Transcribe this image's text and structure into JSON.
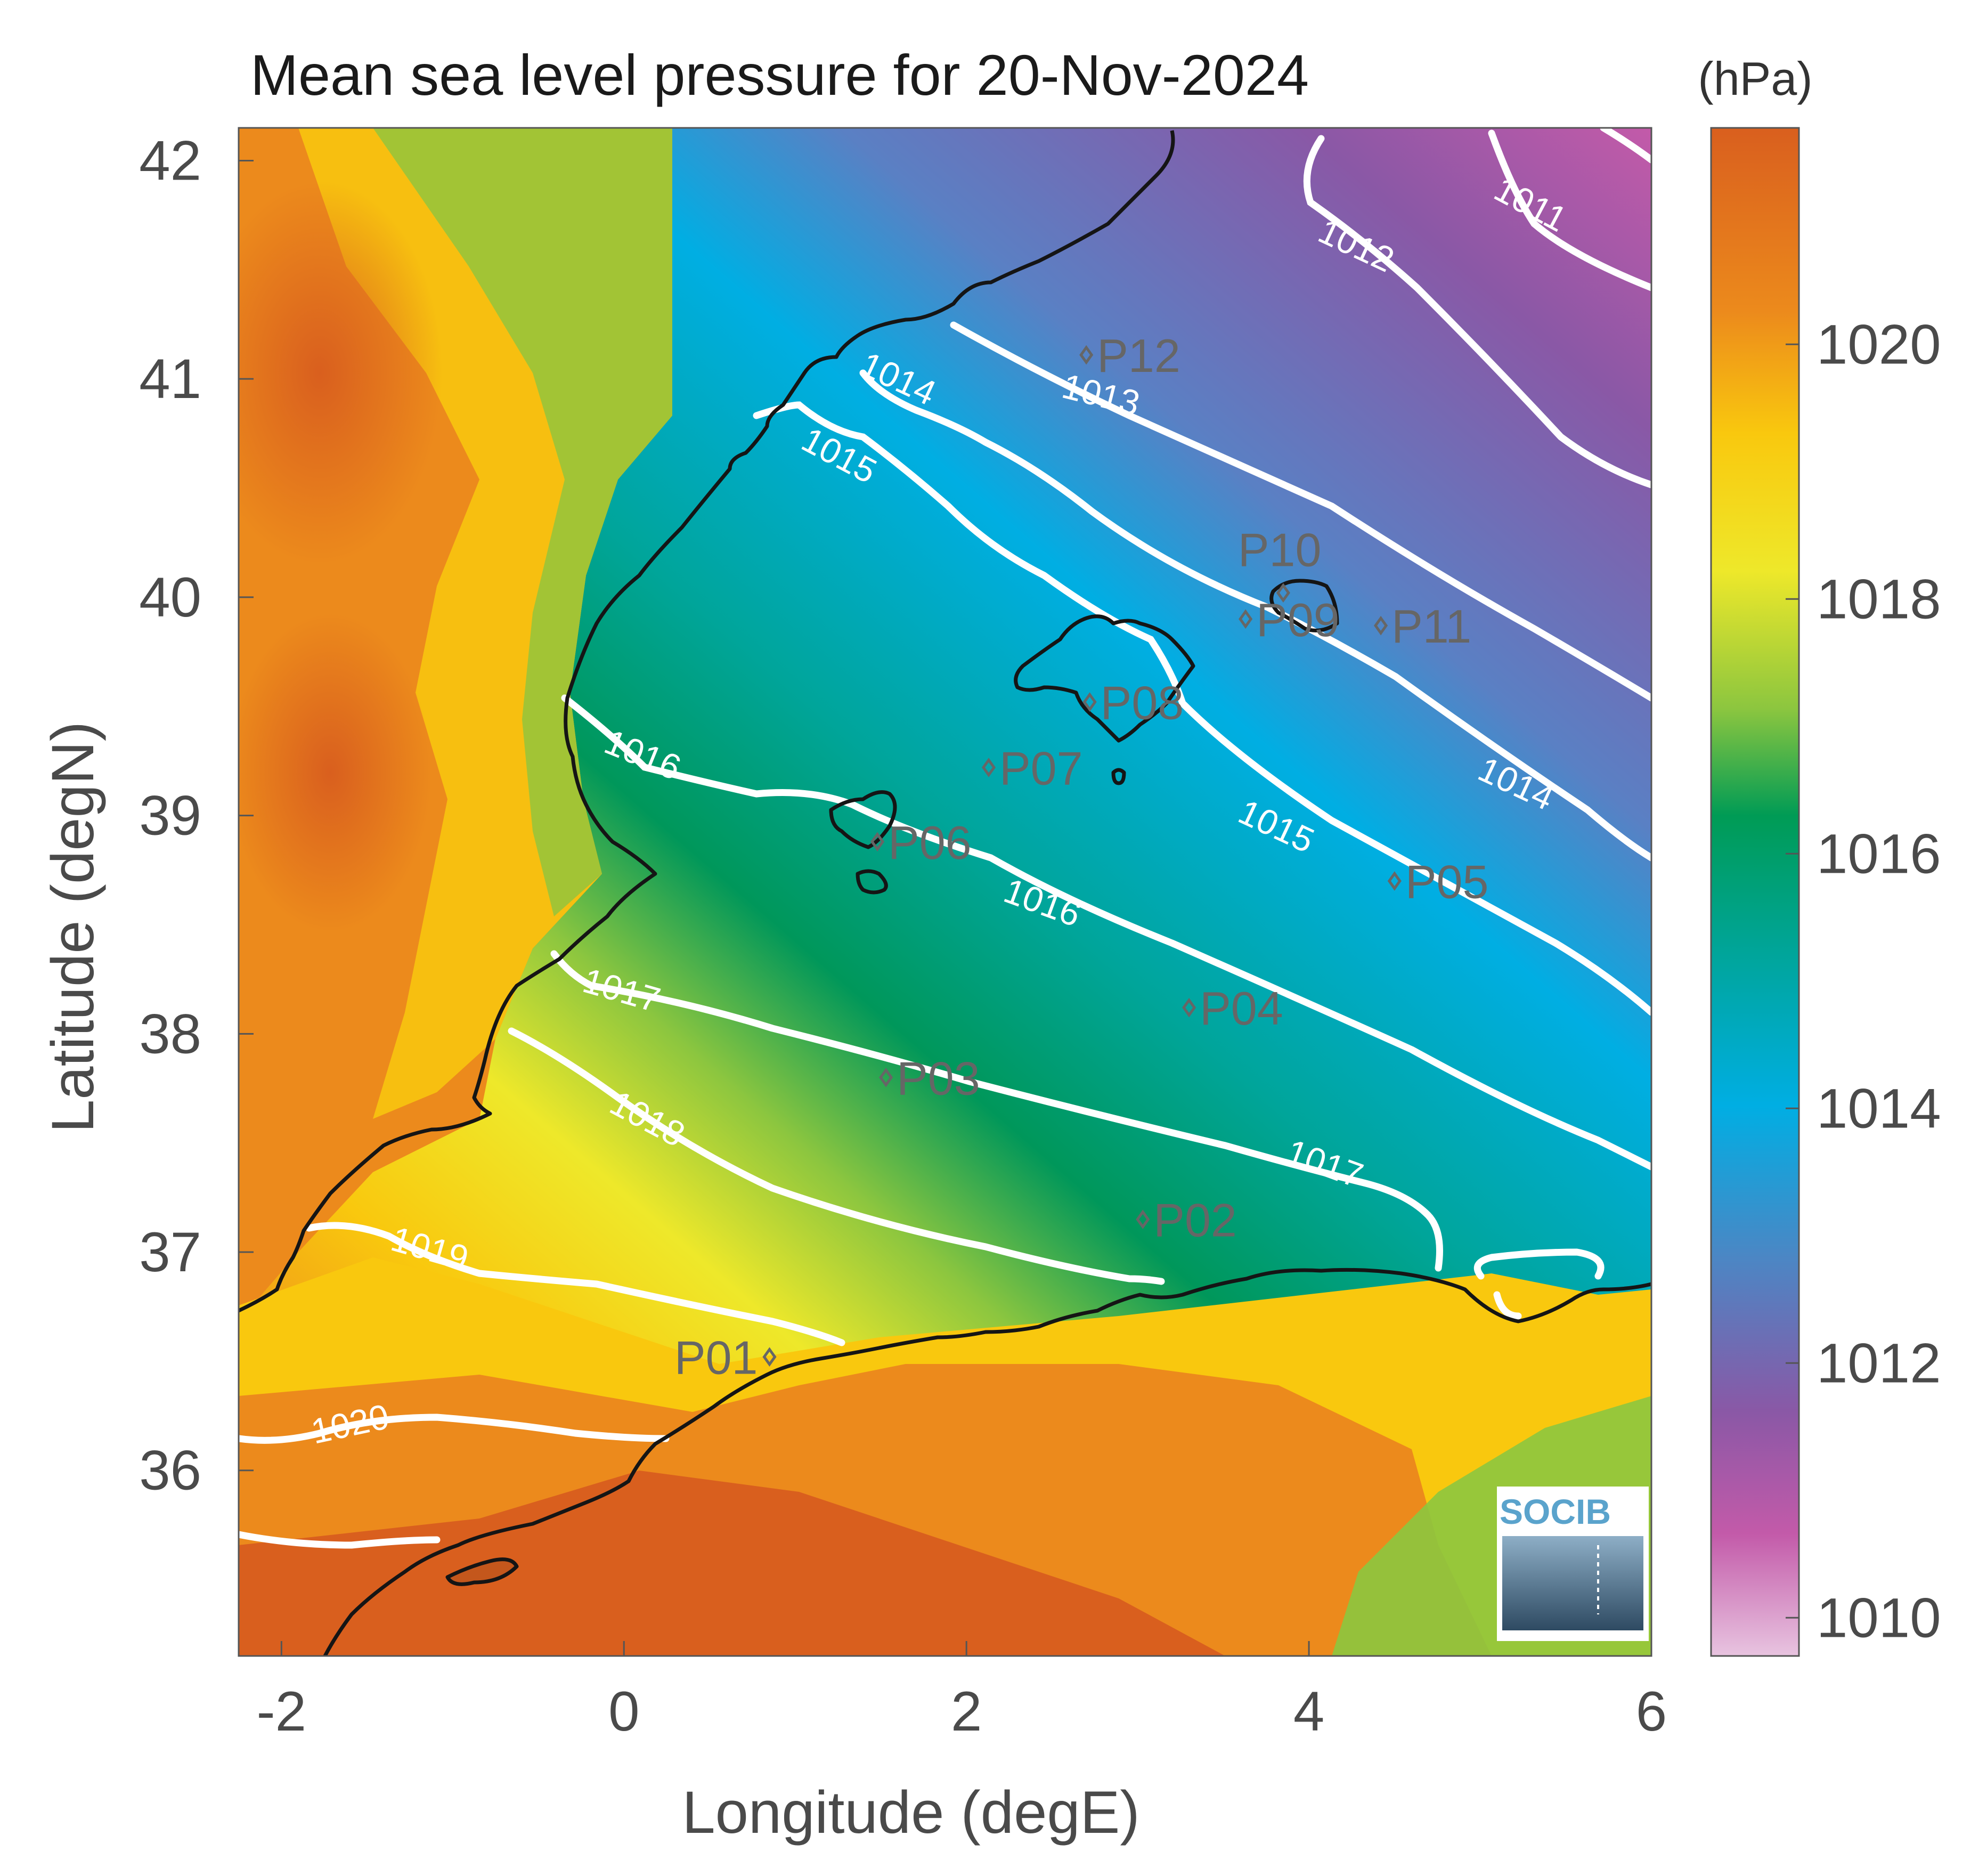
{
  "title": "Mean sea level pressure for 20-Nov-2024",
  "unit_label": "(hPa)",
  "logo_text": "SOCIB",
  "colors": {
    "coast": "#151515",
    "contour": "#ffffff",
    "point_marker": "#666666",
    "palette_high": "#d95f1e",
    "palette_mid": "#009b55",
    "palette_low": "#e8b8d8"
  },
  "chart_data": {
    "type": "heatmap",
    "title": "Mean sea level pressure for 20-Nov-2024",
    "xlabel": "Longitude (degE)",
    "ylabel": "Latitude (degN)",
    "xlim": [
      -2.25,
      6.0
    ],
    "ylim": [
      35.15,
      42.15
    ],
    "x_ticks": [
      "-2",
      "0",
      "2",
      "4",
      "6"
    ],
    "x_tick_values": [
      -2,
      0,
      2,
      4,
      6
    ],
    "y_ticks": [
      "36",
      "37",
      "38",
      "39",
      "40",
      "41",
      "42"
    ],
    "y_tick_values": [
      36,
      37,
      38,
      39,
      40,
      41,
      42
    ],
    "colorbar": {
      "unit": "(hPa)",
      "range": [
        1009.7,
        1021.7
      ],
      "tick_labels": [
        "1010",
        "1012",
        "1014",
        "1016",
        "1018",
        "1020"
      ],
      "tick_values": [
        1010,
        1012,
        1014,
        1016,
        1018,
        1020
      ]
    },
    "contour_labels": [
      "1011",
      "1012",
      "1013",
      "1014",
      "1014",
      "1015",
      "1015",
      "1016",
      "1016",
      "1017",
      "1017",
      "1018",
      "1019",
      "1020"
    ],
    "stations": [
      {
        "name": "P01",
        "lon": 0.85,
        "lat": 36.52
      },
      {
        "name": "P02",
        "lon": 3.03,
        "lat": 37.15
      },
      {
        "name": "P03",
        "lon": 1.53,
        "lat": 37.8
      },
      {
        "name": "P04",
        "lon": 3.3,
        "lat": 38.12
      },
      {
        "name": "P05",
        "lon": 4.5,
        "lat": 38.7
      },
      {
        "name": "P06",
        "lon": 1.48,
        "lat": 38.88
      },
      {
        "name": "P07",
        "lon": 2.13,
        "lat": 39.22
      },
      {
        "name": "P08",
        "lon": 2.72,
        "lat": 39.52
      },
      {
        "name": "P09",
        "lon": 3.63,
        "lat": 39.9
      },
      {
        "name": "P10",
        "lon": 3.85,
        "lat": 40.02
      },
      {
        "name": "P11",
        "lon": 4.42,
        "lat": 39.87
      },
      {
        "name": "P12",
        "lon": 2.7,
        "lat": 41.11
      }
    ]
  }
}
